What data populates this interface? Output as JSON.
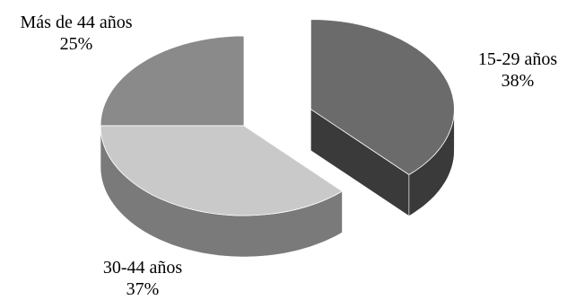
{
  "chart_data": {
    "type": "pie",
    "style": "3d-exploded",
    "slices": [
      {
        "label": "15-29 años",
        "percent_label": "38%",
        "value": 38,
        "color": "#6b6b6b",
        "side_color": "#3a3a3a",
        "exploded": true
      },
      {
        "label": "30-44 años",
        "percent_label": "37%",
        "value": 37,
        "color": "#c9c9c9",
        "side_color": "#7a7a7a",
        "exploded": false
      },
      {
        "label": "Más de 44 años",
        "percent_label": "25%",
        "value": 25,
        "color": "#8a8a8a",
        "side_color": "#4a4a4a",
        "exploded": false
      }
    ],
    "legend": "none"
  }
}
